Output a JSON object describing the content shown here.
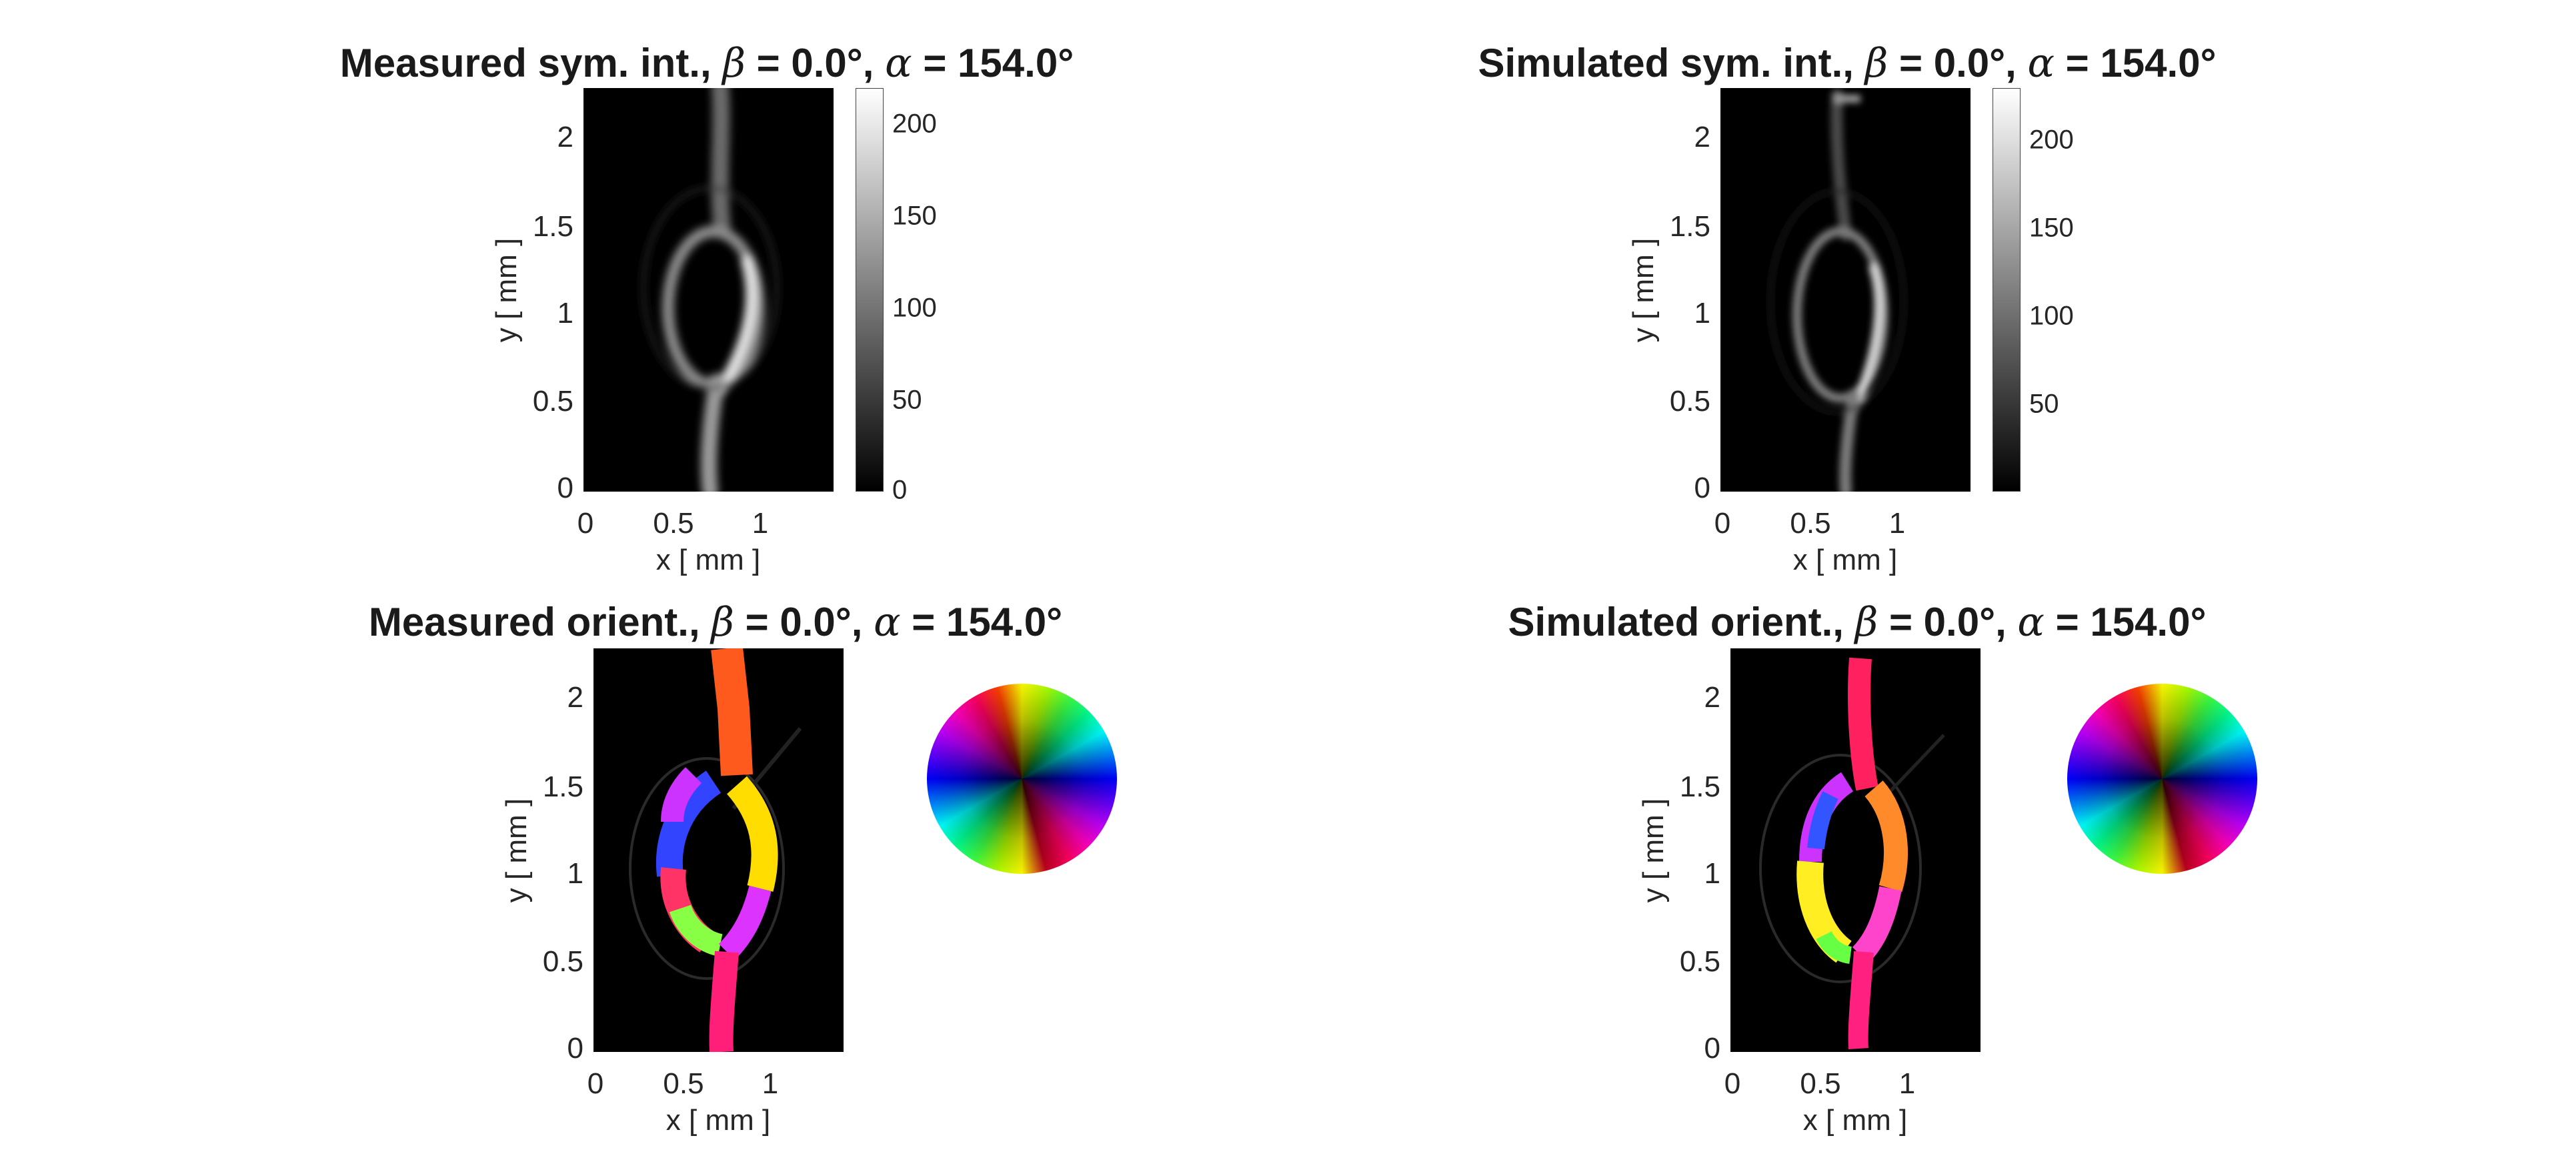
{
  "figure": {
    "panels": [
      {
        "title_pre": "Measured sym. int., ",
        "title_beta": "β",
        "title_mid": " = 0.0°, ",
        "title_alpha": "α",
        "title_post": " =  154.0°"
      },
      {
        "title_pre": "Simulated sym. int., ",
        "title_beta": "β",
        "title_mid": " = 0.0°, ",
        "title_alpha": "α",
        "title_post": " =  154.0°"
      },
      {
        "title_pre": "Measured orient., ",
        "title_beta": "β",
        "title_mid": " = 0.0°, ",
        "title_alpha": "α",
        "title_post": " =  154.0°"
      },
      {
        "title_pre": "Simulated orient., ",
        "title_beta": "β",
        "title_mid": " = 0.0°, ",
        "title_alpha": "α",
        "title_post": " =  154.0°"
      }
    ],
    "xlabel": "x [ mm ]",
    "ylabel": "y [ mm ]",
    "xticks": [
      "0",
      "0.5",
      "1"
    ],
    "yticks": [
      "0",
      "0.5",
      "1",
      "1.5",
      "2"
    ],
    "colorbar_measured_ticks": [
      "0",
      "50",
      "100",
      "150",
      "200"
    ],
    "colorbar_simulated_ticks": [
      "50",
      "100",
      "150",
      "200"
    ]
  },
  "chart_data": [
    {
      "type": "heatmap",
      "title": "Measured sym. int., β = 0.0°, α =  154.0°",
      "xlabel": "x [ mm ]",
      "ylabel": "y [ mm ]",
      "xlim": [
        0,
        1.42
      ],
      "ylim": [
        0,
        2.27
      ],
      "xticks": [
        0,
        0.5,
        1
      ],
      "yticks": [
        0,
        0.5,
        1,
        1.5,
        2
      ],
      "colorbar": {
        "colormap": "gray",
        "range": [
          0,
          220
        ],
        "ticks": [
          0,
          50,
          100,
          150,
          200
        ]
      }
    },
    {
      "type": "heatmap",
      "title": "Simulated sym. int., β = 0.0°, α =  154.0°",
      "xlabel": "x [ mm ]",
      "ylabel": "y [ mm ]",
      "xlim": [
        0,
        1.42
      ],
      "ylim": [
        0,
        2.27
      ],
      "xticks": [
        0,
        0.5,
        1
      ],
      "yticks": [
        0,
        0.5,
        1,
        1.5,
        2
      ],
      "colorbar": {
        "colormap": "gray",
        "range": [
          5,
          230
        ],
        "ticks": [
          50,
          100,
          150,
          200
        ]
      }
    },
    {
      "type": "heatmap",
      "title": "Measured orient., β = 0.0°, α =  154.0°",
      "xlabel": "x [ mm ]",
      "ylabel": "y [ mm ]",
      "xlim": [
        0,
        1.42
      ],
      "ylim": [
        0,
        2.27
      ],
      "xticks": [
        0,
        0.5,
        1
      ],
      "yticks": [
        0,
        0.5,
        1,
        1.5,
        2
      ],
      "colormap": "hsv orientation wheel"
    },
    {
      "type": "heatmap",
      "title": "Simulated orient., β = 0.0°, α =  154.0°",
      "xlabel": "x [ mm ]",
      "ylabel": "y [ mm ]",
      "xlim": [
        0,
        1.42
      ],
      "ylim": [
        0,
        2.27
      ],
      "xticks": [
        0,
        0.5,
        1
      ],
      "yticks": [
        0,
        0.5,
        1,
        1.5,
        2
      ],
      "colormap": "hsv orientation wheel"
    }
  ]
}
